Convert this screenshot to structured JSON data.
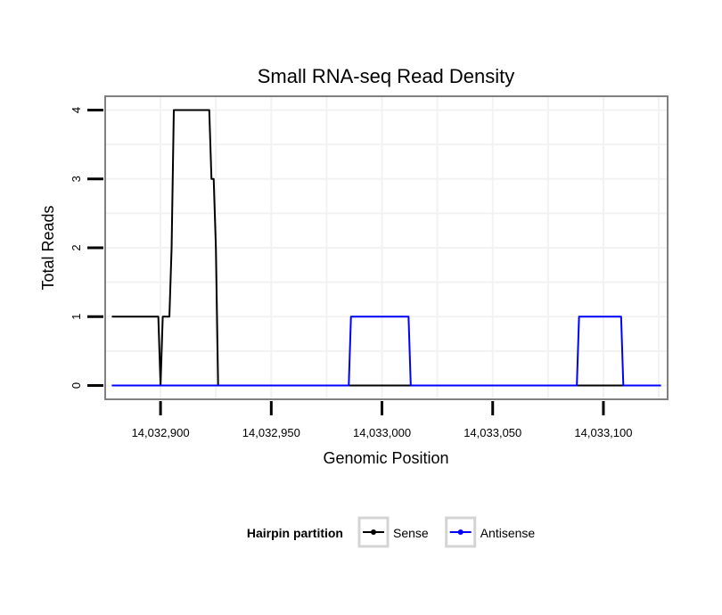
{
  "chart_data": {
    "type": "line",
    "title": "Small RNA-seq Read Density",
    "xlabel": "Genomic Position",
    "ylabel": "Total Reads",
    "xlim": [
      14032875,
      14033129
    ],
    "ylim": [
      -0.2,
      4.2
    ],
    "x_ticks": [
      14032900,
      14032950,
      14033000,
      14033050,
      14033100
    ],
    "x_tick_labels": [
      "14,032,900",
      "14,032,950",
      "14,033,000",
      "14,033,050",
      "14,033,100"
    ],
    "y_ticks": [
      0,
      1,
      2,
      3,
      4
    ],
    "y_tick_labels": [
      "0",
      "1",
      "2",
      "3",
      "4"
    ],
    "grid": true,
    "legend_title": "Hairpin partition",
    "legend_position": "bottom",
    "series": [
      {
        "name": "Sense",
        "color": "#000000",
        "x": [
          14032878,
          14032899,
          14032900,
          14032901,
          14032902,
          14032904,
          14032905,
          14032906,
          14032922,
          14032923,
          14032924,
          14032925,
          14032926,
          14032927,
          14033126
        ],
        "y": [
          1,
          1,
          0,
          1,
          1,
          1,
          2,
          4,
          4,
          3,
          3,
          2,
          0,
          0,
          0
        ]
      },
      {
        "name": "Antisense",
        "color": "#0000ff",
        "x": [
          14032878,
          14032985,
          14032986,
          14033012,
          14033013,
          14033088,
          14033089,
          14033108,
          14033109,
          14033126
        ],
        "y": [
          0,
          0,
          1,
          1,
          0,
          0,
          1,
          1,
          0,
          0
        ]
      }
    ]
  }
}
